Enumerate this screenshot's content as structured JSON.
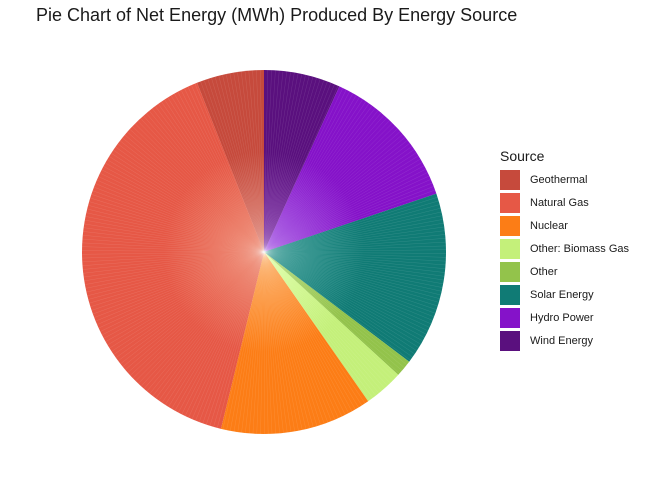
{
  "chart_data": {
    "type": "pie",
    "title": "Pie Chart of Net Energy (MWh) Produced By Energy Source",
    "legend_title": "Source",
    "legend_position": "right",
    "start": "12 o'clock",
    "direction": "clockwise",
    "categories": [
      "Geothermal",
      "Natural Gas",
      "Nuclear",
      "Other: Biomass Gas",
      "Other",
      "Solar Energy",
      "Hydro Power",
      "Wind Energy"
    ],
    "slice_order": [
      "Wind Energy",
      "Hydro Power",
      "Solar Energy",
      "Other",
      "Other: Biomass Gas",
      "Nuclear",
      "Natural Gas",
      "Geothermal"
    ],
    "values": {
      "Wind Energy": 6.8,
      "Hydro Power": 13.0,
      "Solar Energy": 15.5,
      "Other": 1.5,
      "Other: Biomass Gas": 3.5,
      "Nuclear": 13.5,
      "Natural Gas": 40.2,
      "Geothermal": 6.0
    },
    "colors": {
      "Geothermal": "#c64a3c",
      "Natural Gas": "#e65846",
      "Nuclear": "#fc7d16",
      "Other: Biomass Gas": "#c4f07a",
      "Other": "#93c34b",
      "Solar Energy": "#107b75",
      "Hydro Power": "#8512c9",
      "Wind Energy": "#5a107e"
    },
    "inner_colors": {
      "Geothermal": "#e08b7e",
      "Natural Gas": "#ee8a72",
      "Nuclear": "#fcaf66",
      "Other: Biomass Gas": "#deffa8",
      "Other": "#b8dc80",
      "Solar Energy": "#3f9f99",
      "Hydro Power": "#a95ee6",
      "Wind Energy": "#8d45b3"
    }
  }
}
